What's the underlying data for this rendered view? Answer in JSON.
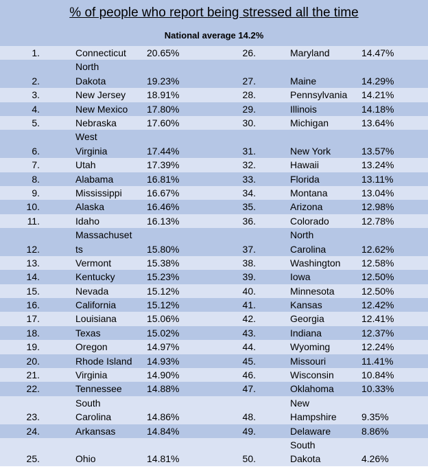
{
  "title": "% of people who report being stressed all the time",
  "subtitle": "National average 14.2%",
  "rows": [
    {
      "rank_left": "1.",
      "state_left": [
        "Connecticut"
      ],
      "pct_left": "20.65%",
      "rank_right": "26.",
      "state_right": [
        "Maryland"
      ],
      "pct_right": "14.47%"
    },
    {
      "rank_left": "2.",
      "state_left": [
        "North",
        "Dakota"
      ],
      "pct_left": "19.23%",
      "rank_right": "27.",
      "state_right": [
        "Maine"
      ],
      "pct_right": "14.29%"
    },
    {
      "rank_left": "3.",
      "state_left": [
        "New Jersey"
      ],
      "pct_left": "18.91%",
      "rank_right": "28.",
      "state_right": [
        "Pennsylvania"
      ],
      "pct_right": "14.21%"
    },
    {
      "rank_left": "4.",
      "state_left": [
        "New Mexico"
      ],
      "pct_left": "17.80%",
      "rank_right": "29.",
      "state_right": [
        "Illinois"
      ],
      "pct_right": "14.18%"
    },
    {
      "rank_left": "5.",
      "state_left": [
        "Nebraska"
      ],
      "pct_left": "17.60%",
      "rank_right": "30.",
      "state_right": [
        "Michigan"
      ],
      "pct_right": "13.64%"
    },
    {
      "rank_left": "6.",
      "state_left": [
        "West",
        "Virginia"
      ],
      "pct_left": "17.44%",
      "rank_right": "31.",
      "state_right": [
        "New York"
      ],
      "pct_right": "13.57%"
    },
    {
      "rank_left": "7.",
      "state_left": [
        "Utah"
      ],
      "pct_left": "17.39%",
      "rank_right": "32.",
      "state_right": [
        "Hawaii"
      ],
      "pct_right": "13.24%"
    },
    {
      "rank_left": "8.",
      "state_left": [
        "Alabama"
      ],
      "pct_left": "16.81%",
      "rank_right": "33.",
      "state_right": [
        "Florida"
      ],
      "pct_right": "13.11%"
    },
    {
      "rank_left": "9.",
      "state_left": [
        "Mississippi"
      ],
      "pct_left": "16.67%",
      "rank_right": "34.",
      "state_right": [
        "Montana"
      ],
      "pct_right": "13.04%"
    },
    {
      "rank_left": "10.",
      "state_left": [
        "Alaska"
      ],
      "pct_left": "16.46%",
      "rank_right": "35.",
      "state_right": [
        "Arizona"
      ],
      "pct_right": "12.98%"
    },
    {
      "rank_left": "11.",
      "state_left": [
        "Idaho"
      ],
      "pct_left": "16.13%",
      "rank_right": "36.",
      "state_right": [
        "Colorado"
      ],
      "pct_right": "12.78%"
    },
    {
      "rank_left": "12.",
      "state_left": [
        "Massachuset",
        "ts"
      ],
      "pct_left": "15.80%",
      "rank_right": "37.",
      "state_right": [
        "North",
        "Carolina"
      ],
      "pct_right": "12.62%"
    },
    {
      "rank_left": "13.",
      "state_left": [
        "Vermont"
      ],
      "pct_left": "15.38%",
      "rank_right": "38.",
      "state_right": [
        "Washington"
      ],
      "pct_right": "12.58%"
    },
    {
      "rank_left": "14.",
      "state_left": [
        "Kentucky"
      ],
      "pct_left": "15.23%",
      "rank_right": "39.",
      "state_right": [
        "Iowa"
      ],
      "pct_right": "12.50%"
    },
    {
      "rank_left": "15.",
      "state_left": [
        "Nevada"
      ],
      "pct_left": "15.12%",
      "rank_right": "40.",
      "state_right": [
        "Minnesota"
      ],
      "pct_right": "12.50%"
    },
    {
      "rank_left": "16.",
      "state_left": [
        "California"
      ],
      "pct_left": "15.12%",
      "rank_right": "41.",
      "state_right": [
        "Kansas"
      ],
      "pct_right": "12.42%"
    },
    {
      "rank_left": "17.",
      "state_left": [
        "Louisiana"
      ],
      "pct_left": "15.06%",
      "rank_right": "42.",
      "state_right": [
        "Georgia"
      ],
      "pct_right": "12.41%"
    },
    {
      "rank_left": "18.",
      "state_left": [
        "Texas"
      ],
      "pct_left": "15.02%",
      "rank_right": "43.",
      "state_right": [
        "Indiana"
      ],
      "pct_right": "12.37%"
    },
    {
      "rank_left": "19.",
      "state_left": [
        "Oregon"
      ],
      "pct_left": "14.97%",
      "rank_right": "44.",
      "state_right": [
        "Wyoming"
      ],
      "pct_right": "12.24%"
    },
    {
      "rank_left": "20.",
      "state_left": [
        "Rhode Island"
      ],
      "pct_left": "14.93%",
      "rank_right": "45.",
      "state_right": [
        "Missouri"
      ],
      "pct_right": "11.41%"
    },
    {
      "rank_left": "21.",
      "state_left": [
        "Virginia"
      ],
      "pct_left": "14.90%",
      "rank_right": "46.",
      "state_right": [
        "Wisconsin"
      ],
      "pct_right": "10.84%"
    },
    {
      "rank_left": "22.",
      "state_left": [
        "Tennessee"
      ],
      "pct_left": "14.88%",
      "rank_right": "47.",
      "state_right": [
        "Oklahoma"
      ],
      "pct_right": "10.33%"
    },
    {
      "rank_left": "23.",
      "state_left": [
        "South",
        "Carolina"
      ],
      "pct_left": "14.86%",
      "rank_right": "48.",
      "state_right": [
        "New",
        "Hampshire"
      ],
      "pct_right": "9.35%"
    },
    {
      "rank_left": "24.",
      "state_left": [
        "Arkansas"
      ],
      "pct_left": "14.84%",
      "rank_right": "49.",
      "state_right": [
        "Delaware"
      ],
      "pct_right": "8.86%"
    },
    {
      "rank_left": "25.",
      "state_left": [
        "Ohio"
      ],
      "pct_left": "14.81%",
      "rank_right": "50.",
      "state_right": [
        "South",
        "Dakota"
      ],
      "pct_right": "4.26%"
    }
  ]
}
